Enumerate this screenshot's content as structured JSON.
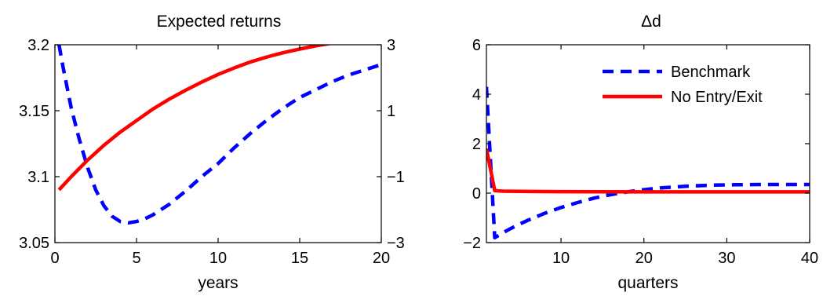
{
  "chart_data": [
    {
      "type": "line",
      "title": "Expected returns",
      "xlabel": "years",
      "ylabel": "",
      "xlim": [
        0,
        20
      ],
      "ylim": [
        3.05,
        3.2
      ],
      "y2lim": [
        -3,
        3
      ],
      "xticks": [
        "0",
        "5",
        "10",
        "15",
        "20"
      ],
      "yticks": [
        "3.05",
        "3.1",
        "3.15",
        "3.2"
      ],
      "y2ticks": [
        "−3",
        "−1",
        "1",
        "3"
      ],
      "grid": false,
      "series": [
        {
          "axis": "left",
          "color": "#0000ff",
          "style": "dashed",
          "x": [
            0.25,
            0.5,
            1,
            1.5,
            2,
            2.5,
            3,
            3.5,
            4,
            4.5,
            5,
            5.5,
            6,
            7,
            8,
            9,
            10,
            11,
            12,
            13,
            14,
            15,
            16,
            17,
            18,
            19,
            20
          ],
          "y": [
            3.2,
            3.183,
            3.152,
            3.128,
            3.107,
            3.09,
            3.078,
            3.07,
            3.066,
            3.065,
            3.066,
            3.068,
            3.071,
            3.079,
            3.089,
            3.1,
            3.11,
            3.122,
            3.133,
            3.143,
            3.152,
            3.16,
            3.166,
            3.172,
            3.177,
            3.181,
            3.185
          ]
        },
        {
          "axis": "right",
          "color": "#ff0000",
          "style": "solid",
          "x": [
            0.25,
            1,
            2,
            3,
            4,
            5,
            6,
            7,
            8,
            9,
            10,
            11,
            12,
            13,
            14,
            15,
            16,
            17,
            18,
            19,
            20
          ],
          "y": [
            -1.4,
            -1.0,
            -0.5,
            -0.05,
            0.35,
            0.7,
            1.05,
            1.35,
            1.62,
            1.87,
            2.1,
            2.3,
            2.48,
            2.63,
            2.76,
            2.87,
            2.97,
            3.05,
            3.11,
            3.16,
            3.2
          ]
        }
      ]
    },
    {
      "type": "line",
      "title": "Δd",
      "xlabel": "quarters",
      "ylabel": "",
      "xlim": [
        1,
        40
      ],
      "ylim": [
        -2,
        6
      ],
      "xticks": [
        "10",
        "20",
        "30",
        "40"
      ],
      "yticks": [
        "−2",
        "0",
        "2",
        "4",
        "6"
      ],
      "grid": false,
      "legend": {
        "position": "top-right",
        "entries": [
          "Benchmark",
          "No Entry/Exit"
        ]
      },
      "series": [
        {
          "name": "Benchmark",
          "color": "#0000ff",
          "style": "dashed",
          "x": [
            1,
            2,
            3,
            4,
            5,
            6,
            8,
            10,
            12,
            14,
            16,
            18,
            20,
            22,
            25,
            28,
            31,
            34,
            37,
            40
          ],
          "y": [
            4.3,
            -1.8,
            -1.6,
            -1.42,
            -1.25,
            -1.1,
            -0.82,
            -0.58,
            -0.38,
            -0.2,
            -0.06,
            0.05,
            0.14,
            0.21,
            0.28,
            0.32,
            0.34,
            0.35,
            0.35,
            0.35
          ]
        },
        {
          "name": "No Entry/Exit",
          "color": "#ff0000",
          "style": "solid",
          "x": [
            1,
            2,
            3,
            5,
            10,
            20,
            30,
            40
          ],
          "y": [
            1.8,
            0.1,
            0.08,
            0.07,
            0.06,
            0.05,
            0.05,
            0.05
          ]
        }
      ]
    }
  ]
}
